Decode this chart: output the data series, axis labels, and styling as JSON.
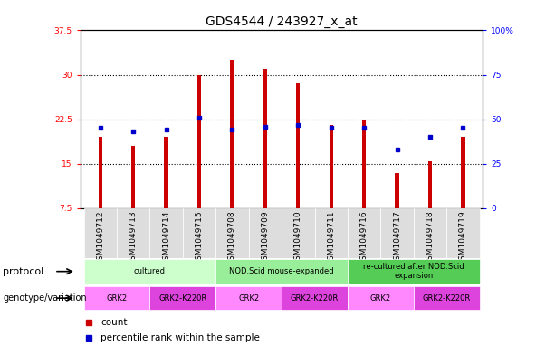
{
  "title": "GDS4544 / 243927_x_at",
  "samples": [
    "GSM1049712",
    "GSM1049713",
    "GSM1049714",
    "GSM1049715",
    "GSM1049708",
    "GSM1049709",
    "GSM1049710",
    "GSM1049711",
    "GSM1049716",
    "GSM1049717",
    "GSM1049718",
    "GSM1049719"
  ],
  "counts": [
    19.5,
    18.0,
    19.5,
    30.0,
    32.5,
    31.0,
    28.5,
    21.5,
    22.5,
    13.5,
    15.5,
    19.5
  ],
  "percentile_ranks": [
    45,
    43,
    44,
    51,
    44,
    46,
    47,
    45,
    45,
    33,
    40,
    45
  ],
  "ylim_left": [
    7.5,
    37.5
  ],
  "ylim_right": [
    0,
    100
  ],
  "yticks_left": [
    7.5,
    15.0,
    22.5,
    30.0,
    37.5
  ],
  "yticks_left_labels": [
    "7.5",
    "15",
    "22.5",
    "30",
    "37.5"
  ],
  "yticks_right": [
    0,
    25,
    50,
    75,
    100
  ],
  "yticks_right_labels": [
    "0",
    "25",
    "50",
    "75",
    "100%"
  ],
  "grid_lines": [
    15.0,
    22.5,
    30.0
  ],
  "bar_color": "#cc0000",
  "dot_color": "#0000cc",
  "bar_width": 0.12,
  "protocol_groups": [
    {
      "label": "cultured",
      "start": 0,
      "end": 3,
      "color": "#ccffcc"
    },
    {
      "label": "NOD.Scid mouse-expanded",
      "start": 4,
      "end": 7,
      "color": "#99ee99"
    },
    {
      "label": "re-cultured after NOD.Scid\nexpansion",
      "start": 8,
      "end": 11,
      "color": "#55cc55"
    }
  ],
  "genotype_groups": [
    {
      "label": "GRK2",
      "start": 0,
      "end": 1,
      "color": "#ff88ff"
    },
    {
      "label": "GRK2-K220R",
      "start": 2,
      "end": 3,
      "color": "#dd44dd"
    },
    {
      "label": "GRK2",
      "start": 4,
      "end": 5,
      "color": "#ff88ff"
    },
    {
      "label": "GRK2-K220R",
      "start": 6,
      "end": 7,
      "color": "#dd44dd"
    },
    {
      "label": "GRK2",
      "start": 8,
      "end": 9,
      "color": "#ff88ff"
    },
    {
      "label": "GRK2-K220R",
      "start": 10,
      "end": 11,
      "color": "#dd44dd"
    }
  ],
  "legend_items": [
    {
      "label": "count",
      "color": "#cc0000"
    },
    {
      "label": "percentile rank within the sample",
      "color": "#0000cc"
    }
  ],
  "title_fontsize": 10,
  "tick_fontsize": 6.5,
  "label_fontsize": 7.5,
  "row_label_fontsize": 8,
  "background_color": "#ffffff",
  "plot_bg_color": "#ffffff",
  "sample_bg_color": "#dddddd"
}
